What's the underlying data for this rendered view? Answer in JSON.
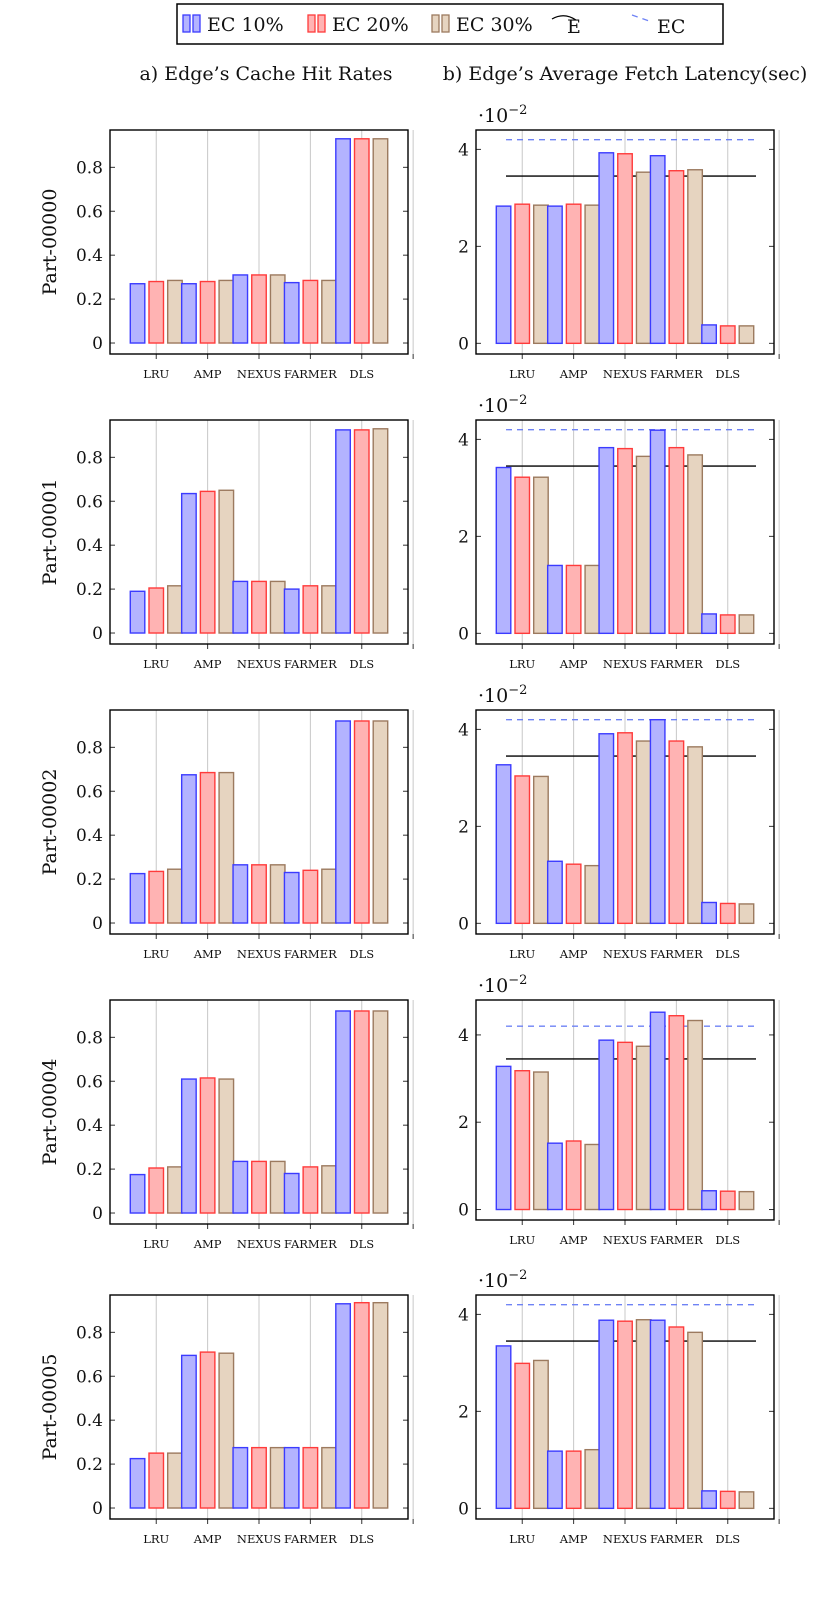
{
  "legend": [
    {
      "label": "EC 10%",
      "kind": "bar",
      "fill": "#b3b3ff",
      "stroke": "#3b3bff"
    },
    {
      "label": "EC 20%",
      "kind": "bar",
      "fill": "#ffb3b3",
      "stroke": "#ff3b3b"
    },
    {
      "label": "EC 30%",
      "kind": "bar",
      "fill": "#e6d4c0",
      "stroke": "#9c7a5f"
    },
    {
      "label": "E",
      "kind": "line",
      "stroke": "#000000",
      "dash": "none"
    },
    {
      "label": "EC",
      "kind": "line",
      "stroke": "#6e82f5",
      "dash": "6,5"
    }
  ],
  "columns": {
    "left_title": "a) Edge’s Cache Hit Rates",
    "right_title": "b) Edge’s Average Fetch Latency(sec)"
  },
  "exponent": {
    "base": "·10",
    "power": "−2"
  },
  "chart_data": [
    {
      "type": "bar",
      "row": "Part-00000",
      "panel": "hit_rates",
      "categories": [
        "LRU",
        "AMP",
        "NEXUS",
        "FARMER",
        "DLS"
      ],
      "series": [
        {
          "name": "EC 10%",
          "values": [
            0.27,
            0.27,
            0.31,
            0.275,
            0.93
          ]
        },
        {
          "name": "EC 20%",
          "values": [
            0.28,
            0.28,
            0.31,
            0.285,
            0.93
          ]
        },
        {
          "name": "EC 30%",
          "values": [
            0.285,
            0.285,
            0.31,
            0.285,
            0.93
          ]
        }
      ],
      "ylim": [
        -0.05,
        0.97
      ],
      "yticks": [
        "0",
        "0.2",
        "0.4",
        "0.6",
        "0.8"
      ],
      "ytick_values": [
        0,
        0.2,
        0.4,
        0.6,
        0.8
      ]
    },
    {
      "type": "bar",
      "row": "Part-00000",
      "panel": "latency",
      "categories": [
        "LRU",
        "AMP",
        "NEXUS",
        "FARMER",
        "DLS"
      ],
      "series": [
        {
          "name": "EC 10%",
          "values": [
            2.83,
            2.83,
            3.93,
            3.87,
            0.38
          ]
        },
        {
          "name": "EC 20%",
          "values": [
            2.87,
            2.87,
            3.91,
            3.56,
            0.36
          ]
        },
        {
          "name": "EC 30%",
          "values": [
            2.85,
            2.85,
            3.53,
            3.58,
            0.36
          ]
        }
      ],
      "hlines": [
        {
          "name": "E",
          "value": 3.45
        },
        {
          "name": "EC",
          "value": 4.2
        }
      ],
      "ylim": [
        -0.22,
        4.4
      ],
      "yticks": [
        "0",
        "2",
        "4"
      ],
      "ytick_values": [
        0,
        2,
        4
      ]
    },
    {
      "type": "bar",
      "row": "Part-00001",
      "panel": "hit_rates",
      "categories": [
        "LRU",
        "AMP",
        "NEXUS",
        "FARMER",
        "DLS"
      ],
      "series": [
        {
          "name": "EC 10%",
          "values": [
            0.19,
            0.635,
            0.235,
            0.2,
            0.925
          ]
        },
        {
          "name": "EC 20%",
          "values": [
            0.205,
            0.645,
            0.235,
            0.215,
            0.925
          ]
        },
        {
          "name": "EC 30%",
          "values": [
            0.215,
            0.65,
            0.235,
            0.215,
            0.93
          ]
        }
      ],
      "ylim": [
        -0.05,
        0.97
      ],
      "yticks": [
        "0",
        "0.2",
        "0.4",
        "0.6",
        "0.8"
      ],
      "ytick_values": [
        0,
        0.2,
        0.4,
        0.6,
        0.8
      ]
    },
    {
      "type": "bar",
      "row": "Part-00001",
      "panel": "latency",
      "categories": [
        "LRU",
        "AMP",
        "NEXUS",
        "FARMER",
        "DLS"
      ],
      "series": [
        {
          "name": "EC 10%",
          "values": [
            3.42,
            1.4,
            3.83,
            4.19,
            0.4
          ]
        },
        {
          "name": "EC 20%",
          "values": [
            3.22,
            1.4,
            3.81,
            3.83,
            0.38
          ]
        },
        {
          "name": "EC 30%",
          "values": [
            3.22,
            1.4,
            3.65,
            3.68,
            0.38
          ]
        }
      ],
      "hlines": [
        {
          "name": "E",
          "value": 3.45
        },
        {
          "name": "EC",
          "value": 4.2
        }
      ],
      "ylim": [
        -0.22,
        4.4
      ],
      "yticks": [
        "0",
        "2",
        "4"
      ],
      "ytick_values": [
        0,
        2,
        4
      ]
    },
    {
      "type": "bar",
      "row": "Part-00002",
      "panel": "hit_rates",
      "categories": [
        "LRU",
        "AMP",
        "NEXUS",
        "FARMER",
        "DLS"
      ],
      "series": [
        {
          "name": "EC 10%",
          "values": [
            0.225,
            0.675,
            0.265,
            0.23,
            0.92
          ]
        },
        {
          "name": "EC 20%",
          "values": [
            0.235,
            0.685,
            0.265,
            0.24,
            0.92
          ]
        },
        {
          "name": "EC 30%",
          "values": [
            0.245,
            0.685,
            0.265,
            0.245,
            0.92
          ]
        }
      ],
      "ylim": [
        -0.05,
        0.97
      ],
      "yticks": [
        "0",
        "0.2",
        "0.4",
        "0.6",
        "0.8"
      ],
      "ytick_values": [
        0,
        0.2,
        0.4,
        0.6,
        0.8
      ]
    },
    {
      "type": "bar",
      "row": "Part-00002",
      "panel": "latency",
      "categories": [
        "LRU",
        "AMP",
        "NEXUS",
        "FARMER",
        "DLS"
      ],
      "series": [
        {
          "name": "EC 10%",
          "values": [
            3.27,
            1.28,
            3.91,
            4.2,
            0.43
          ]
        },
        {
          "name": "EC 20%",
          "values": [
            3.04,
            1.22,
            3.93,
            3.76,
            0.41
          ]
        },
        {
          "name": "EC 30%",
          "values": [
            3.03,
            1.19,
            3.76,
            3.64,
            0.4
          ]
        }
      ],
      "hlines": [
        {
          "name": "E",
          "value": 3.45
        },
        {
          "name": "EC",
          "value": 4.2
        }
      ],
      "ylim": [
        -0.22,
        4.4
      ],
      "yticks": [
        "0",
        "2",
        "4"
      ],
      "ytick_values": [
        0,
        2,
        4
      ]
    },
    {
      "type": "bar",
      "row": "Part-00004",
      "panel": "hit_rates",
      "categories": [
        "LRU",
        "AMP",
        "NEXUS",
        "FARMER",
        "DLS"
      ],
      "series": [
        {
          "name": "EC 10%",
          "values": [
            0.175,
            0.61,
            0.235,
            0.18,
            0.92
          ]
        },
        {
          "name": "EC 20%",
          "values": [
            0.205,
            0.615,
            0.235,
            0.21,
            0.92
          ]
        },
        {
          "name": "EC 30%",
          "values": [
            0.21,
            0.61,
            0.235,
            0.215,
            0.92
          ]
        }
      ],
      "ylim": [
        -0.05,
        0.97
      ],
      "yticks": [
        "0",
        "0.2",
        "0.4",
        "0.6",
        "0.8"
      ],
      "ytick_values": [
        0,
        0.2,
        0.4,
        0.6,
        0.8
      ]
    },
    {
      "type": "bar",
      "row": "Part-00004",
      "panel": "latency",
      "categories": [
        "LRU",
        "AMP",
        "NEXUS",
        "FARMER",
        "DLS"
      ],
      "series": [
        {
          "name": "EC 10%",
          "values": [
            3.28,
            1.52,
            3.88,
            4.52,
            0.43
          ]
        },
        {
          "name": "EC 20%",
          "values": [
            3.18,
            1.57,
            3.83,
            4.44,
            0.42
          ]
        },
        {
          "name": "EC 30%",
          "values": [
            3.15,
            1.49,
            3.74,
            4.33,
            0.41
          ]
        }
      ],
      "hlines": [
        {
          "name": "E",
          "value": 3.45
        },
        {
          "name": "EC",
          "value": 4.2
        }
      ],
      "ylim": [
        -0.24,
        4.8
      ],
      "yticks": [
        "0",
        "2",
        "4"
      ],
      "ytick_values": [
        0,
        2,
        4
      ]
    },
    {
      "type": "bar",
      "row": "Part-00005",
      "panel": "hit_rates",
      "categories": [
        "LRU",
        "AMP",
        "NEXUS",
        "FARMER",
        "DLS"
      ],
      "series": [
        {
          "name": "EC 10%",
          "values": [
            0.225,
            0.695,
            0.275,
            0.275,
            0.93
          ]
        },
        {
          "name": "EC 20%",
          "values": [
            0.25,
            0.71,
            0.275,
            0.275,
            0.935
          ]
        },
        {
          "name": "EC 30%",
          "values": [
            0.25,
            0.705,
            0.275,
            0.275,
            0.935
          ]
        }
      ],
      "ylim": [
        -0.05,
        0.97
      ],
      "yticks": [
        "0",
        "0.2",
        "0.4",
        "0.6",
        "0.8"
      ],
      "ytick_values": [
        0,
        0.2,
        0.4,
        0.6,
        0.8
      ]
    },
    {
      "type": "bar",
      "row": "Part-00005",
      "panel": "latency",
      "categories": [
        "LRU",
        "AMP",
        "NEXUS",
        "FARMER",
        "DLS"
      ],
      "series": [
        {
          "name": "EC 10%",
          "values": [
            3.35,
            1.18,
            3.88,
            3.88,
            0.36
          ]
        },
        {
          "name": "EC 20%",
          "values": [
            2.99,
            1.18,
            3.86,
            3.74,
            0.35
          ]
        },
        {
          "name": "EC 30%",
          "values": [
            3.05,
            1.21,
            3.89,
            3.63,
            0.34
          ]
        }
      ],
      "hlines": [
        {
          "name": "E",
          "value": 3.45
        },
        {
          "name": "EC",
          "value": 4.2
        }
      ],
      "ylim": [
        -0.22,
        4.4
      ],
      "yticks": [
        "0",
        "2",
        "4"
      ],
      "ytick_values": [
        0,
        2,
        4
      ]
    }
  ]
}
